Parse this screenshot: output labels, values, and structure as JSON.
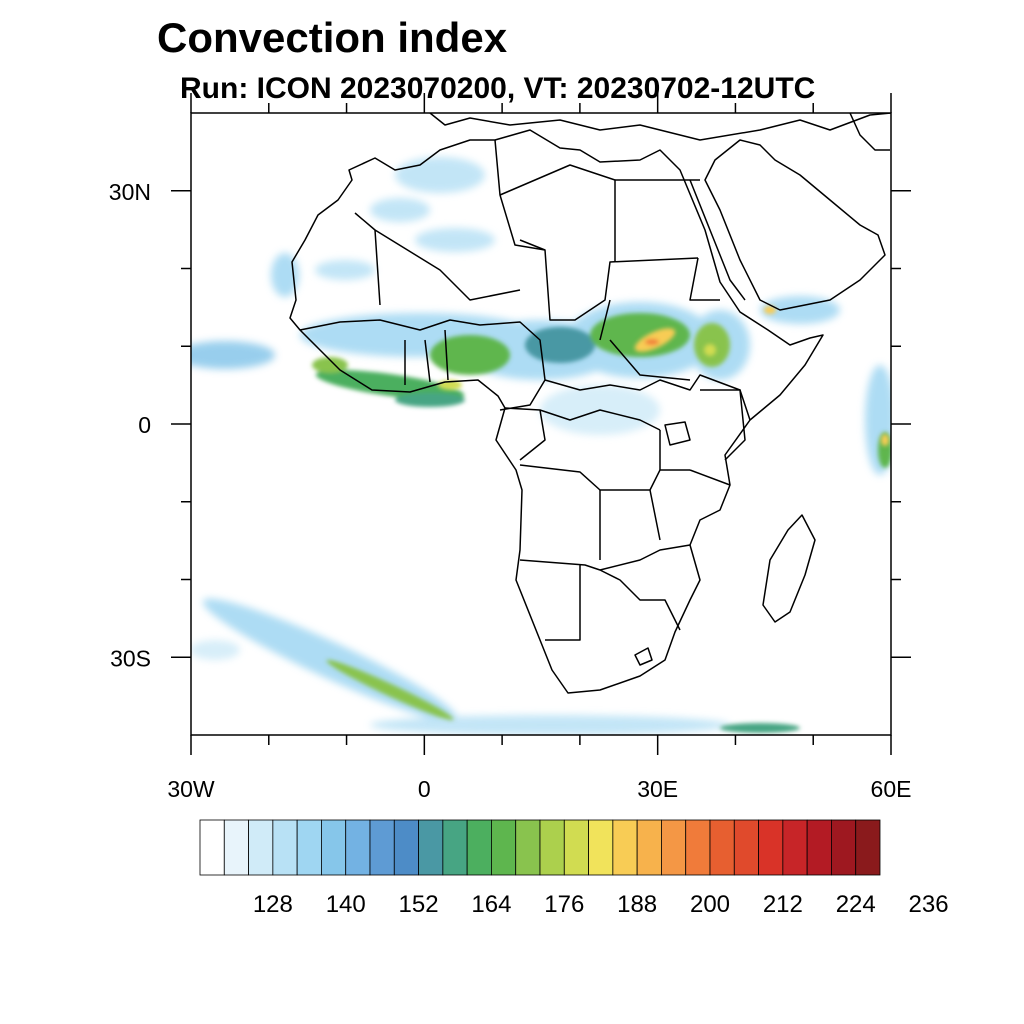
{
  "title": "Convection index",
  "subtitle": "Run: ICON 2023070200,  VT: 20230702-12UTC",
  "map": {
    "projection": "equirectangular",
    "lon_range": [
      -30,
      60
    ],
    "lat_range": [
      -40,
      40
    ],
    "lon_ticks": [
      {
        "value": -30,
        "label": "30W"
      },
      {
        "value": 0,
        "label": "0"
      },
      {
        "value": 30,
        "label": "30E"
      },
      {
        "value": 60,
        "label": "60E"
      }
    ],
    "lat_ticks": [
      {
        "value": 30,
        "label": "30N"
      },
      {
        "value": 0,
        "label": "0"
      },
      {
        "value": -30,
        "label": "30S"
      }
    ],
    "minor_lon_ticks": [
      -20,
      -10,
      10,
      20,
      40,
      50
    ],
    "minor_lat_ticks": [
      20,
      10,
      -10,
      -20
    ],
    "field": "convection index",
    "features": [
      {
        "name": "sahel-band",
        "level": 160,
        "lon": 8,
        "lat": 10
      },
      {
        "name": "guinea-coast",
        "level": 175,
        "lon": -5,
        "lat": 5
      },
      {
        "name": "sudan-ethiopia-max",
        "level": 200,
        "lon": 30,
        "lat": 10
      },
      {
        "name": "southern-frontal-band",
        "level": 170,
        "lon": -8,
        "lat": -33
      },
      {
        "name": "atlantic-itcz",
        "level": 150,
        "lon": -29,
        "lat": 9
      },
      {
        "name": "indian-ocean-cells",
        "level": 165,
        "lon": 59,
        "lat": 0
      }
    ]
  },
  "colorbar": {
    "colors": [
      "#ffffff",
      "#e8f4fb",
      "#d0ebf8",
      "#b8e1f5",
      "#9fd6f2",
      "#86c6ea",
      "#73b2e3",
      "#5e9bd4",
      "#4d8cc7",
      "#4a98a4",
      "#47a583",
      "#4caf5f",
      "#5eb64e",
      "#89c34e",
      "#acd04d",
      "#d1dc51",
      "#f1e35b",
      "#f8cc55",
      "#f7b24c",
      "#f49745",
      "#f07b3a",
      "#e75f30",
      "#e04a2c",
      "#d93328",
      "#c72528",
      "#b31b24",
      "#9e1820",
      "#8a1a1c"
    ],
    "tick_labels": [
      "128",
      "140",
      "152",
      "164",
      "176",
      "188",
      "200",
      "212",
      "224",
      "236"
    ]
  }
}
